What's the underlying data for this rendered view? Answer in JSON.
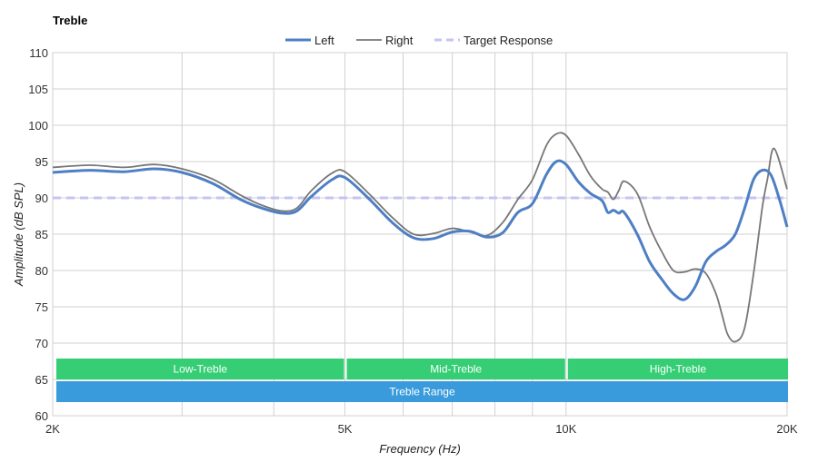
{
  "chart_data": {
    "type": "line",
    "title": "Treble",
    "xlabel": "Frequency (Hz)",
    "ylabel": "Amplitude (dB SPL)",
    "x_scale": "log",
    "xlim": [
      2000,
      20000
    ],
    "ylim": [
      60,
      110
    ],
    "x_ticks": [
      {
        "value": 2000,
        "label": "2K"
      },
      {
        "value": 5000,
        "label": "5K"
      },
      {
        "value": 10000,
        "label": "10K"
      },
      {
        "value": 20000,
        "label": "20K"
      }
    ],
    "x_gridlines": [
      2000,
      3000,
      4000,
      5000,
      6000,
      7000,
      8000,
      9000,
      10000,
      20000
    ],
    "y_ticks": [
      60,
      65,
      70,
      75,
      80,
      85,
      90,
      95,
      100,
      105,
      110
    ],
    "grid": true,
    "legend_position": "top-center",
    "series": [
      {
        "name": "Left",
        "color": "#4e7fc4",
        "style": "solid-thick",
        "x": [
          2000,
          2250,
          2500,
          2750,
          3000,
          3300,
          3600,
          3850,
          4100,
          4300,
          4500,
          4800,
          5000,
          5400,
          5800,
          6200,
          6600,
          7000,
          7400,
          7800,
          8200,
          8600,
          9000,
          9400,
          9700,
          10000,
          10400,
          10800,
          11200,
          11400,
          11600,
          11800,
          12000,
          12500,
          13000,
          13500,
          14000,
          14500,
          15000,
          15500,
          16000,
          16500,
          17000,
          17500,
          18000,
          18500,
          19000,
          19500,
          20000
        ],
        "y": [
          93.5,
          93.8,
          93.6,
          94.0,
          93.5,
          92.0,
          89.8,
          88.6,
          87.9,
          88.2,
          90.2,
          92.5,
          92.8,
          89.8,
          86.6,
          84.5,
          84.4,
          85.3,
          85.4,
          84.6,
          85.2,
          88.0,
          89.2,
          93.2,
          95.0,
          94.6,
          92.2,
          90.6,
          89.6,
          88.0,
          88.3,
          87.9,
          88.0,
          85.0,
          81.2,
          78.8,
          76.8,
          76.0,
          77.8,
          81.2,
          82.6,
          83.5,
          85.0,
          88.5,
          92.5,
          93.8,
          93.2,
          90.0,
          86.0
        ]
      },
      {
        "name": "Right",
        "color": "#777777",
        "style": "solid-thin",
        "x": [
          2000,
          2250,
          2500,
          2750,
          3000,
          3300,
          3600,
          3850,
          4100,
          4300,
          4500,
          4800,
          5000,
          5400,
          5800,
          6200,
          6600,
          7000,
          7400,
          7800,
          8200,
          8600,
          9000,
          9400,
          9700,
          10000,
          10400,
          10800,
          11200,
          11400,
          11600,
          11800,
          12000,
          12500,
          13000,
          13500,
          14000,
          14500,
          15000,
          15500,
          16000,
          16300,
          16600,
          17000,
          17500,
          18000,
          18500,
          18800,
          19200,
          20000
        ],
        "y": [
          94.2,
          94.5,
          94.2,
          94.6,
          94.0,
          92.6,
          90.4,
          89.0,
          88.2,
          88.6,
          91.0,
          93.4,
          93.6,
          90.5,
          87.3,
          85.0,
          85.1,
          85.8,
          85.3,
          84.8,
          86.6,
          89.8,
          92.5,
          97.2,
          98.8,
          98.6,
          96.0,
          93.0,
          91.2,
          90.8,
          89.8,
          91.0,
          92.3,
          90.6,
          86.0,
          82.6,
          80.0,
          79.8,
          80.2,
          79.6,
          76.8,
          74.0,
          71.2,
          70.2,
          72.0,
          79.5,
          88.6,
          92.5,
          96.8,
          91.2
        ]
      },
      {
        "name": "Target Response",
        "color": "#c4c4f4",
        "style": "dashed",
        "x": [
          2000,
          20000
        ],
        "y": [
          90,
          90
        ]
      }
    ],
    "bands": [
      {
        "label": "Low-Treble",
        "x_start": 2000,
        "x_end": 5000,
        "color": "#2ecc71",
        "row": 1
      },
      {
        "label": "Mid-Treble",
        "x_start": 5000,
        "x_end": 10000,
        "color": "#2ecc71",
        "row": 1
      },
      {
        "label": "High-Treble",
        "x_start": 10000,
        "x_end": 20000,
        "color": "#2ecc71",
        "row": 1
      },
      {
        "label": "Treble Range",
        "x_start": 2000,
        "x_end": 20000,
        "color": "#3498db",
        "row": 2
      }
    ]
  }
}
